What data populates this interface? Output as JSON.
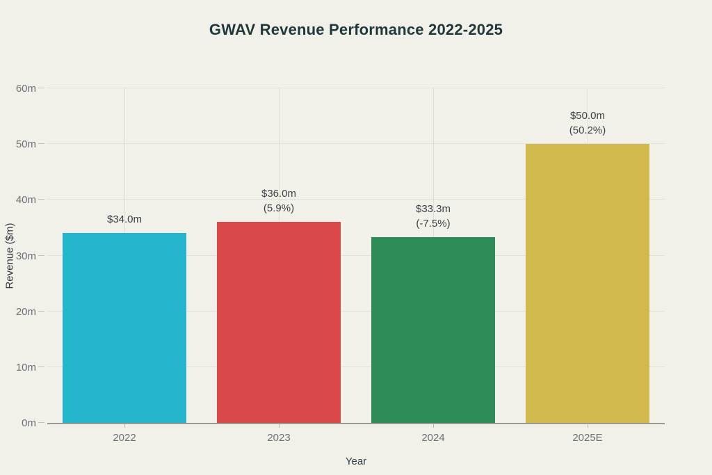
{
  "title": "GWAV Revenue Performance 2022-2025",
  "colors": {
    "background": "#f1f0e9",
    "title_text": "#20393c",
    "tick_text": "#6e7275",
    "annotation_text": "#3c4247",
    "axis_line": "#9a9b95",
    "hgrid_line": "#e3e2d9",
    "vgrid_line": "#deddd4"
  },
  "chart_data": {
    "type": "bar",
    "title": "GWAV Revenue Performance 2022-2025",
    "xlabel": "Year",
    "ylabel": "Revenue ($m)",
    "categories": [
      "2022",
      "2023",
      "2024",
      "2025E"
    ],
    "values": [
      34.0,
      36.0,
      33.3,
      50.0
    ],
    "bar_labels": [
      [
        "$34.0m"
      ],
      [
        "$36.0m",
        "(5.9%)"
      ],
      [
        "$33.3m",
        "(-7.5%)"
      ],
      [
        "$50.0m",
        "(50.2%)"
      ]
    ],
    "bar_colors": [
      "#25b6cd",
      "#d94848",
      "#2e8b57",
      "#d0b94d"
    ],
    "y_ticks": [
      "0m",
      "10m",
      "20m",
      "30m",
      "40m",
      "50m",
      "60m"
    ],
    "y_tick_values": [
      0,
      10,
      20,
      30,
      40,
      50,
      60
    ],
    "ylim": [
      0,
      60
    ],
    "bar_width_fraction": 0.8,
    "grid": true,
    "legend": false
  }
}
